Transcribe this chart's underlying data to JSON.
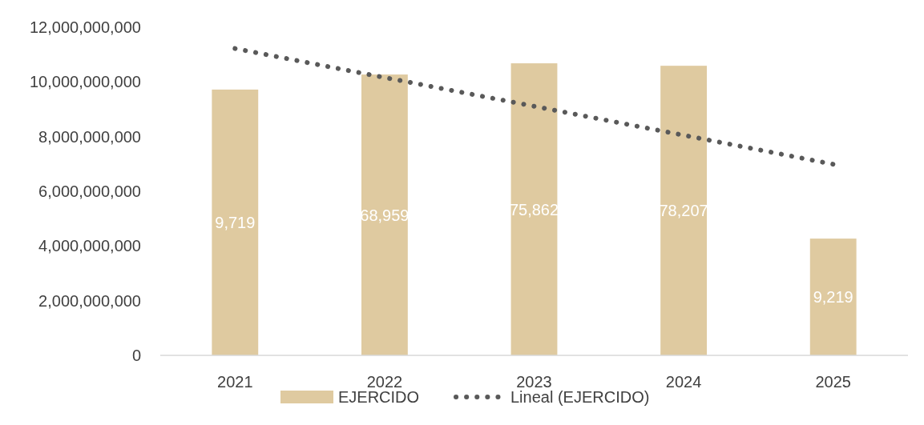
{
  "chart_data": {
    "type": "bar",
    "categories": [
      "2021",
      "2022",
      "2023",
      "2024",
      "2025"
    ],
    "series": [
      {
        "name": "EJERCIDO",
        "color": "#dfcaa0",
        "values": [
          9720000000,
          10270000000,
          10680000000,
          10590000000,
          4270000000
        ]
      },
      {
        "name": "Lineal (EJERCIDO)",
        "type": "line",
        "color": "#595959",
        "line_style": "dotted",
        "values": [
          11220000000,
          10160000000,
          9110000000,
          8050000000,
          6990000000
        ]
      }
    ],
    "ylim": [
      0,
      12000000000
    ],
    "yticks": [
      {
        "value": 0,
        "label": "0"
      },
      {
        "value": 2000000000,
        "label": "2,000,000,000"
      },
      {
        "value": 4000000000,
        "label": "4,000,000,000"
      },
      {
        "value": 6000000000,
        "label": "6,000,000,000"
      },
      {
        "value": 8000000000,
        "label": "8,000,000,000"
      },
      {
        "value": 10000000000,
        "label": "10,000,000,000"
      },
      {
        "value": 12000000000,
        "label": "12,000,000,000"
      }
    ],
    "annotations": [
      "9,719",
      "68,959",
      "75,862",
      "78,207",
      "9,219"
    ],
    "grid": false,
    "legend": "bottom"
  }
}
